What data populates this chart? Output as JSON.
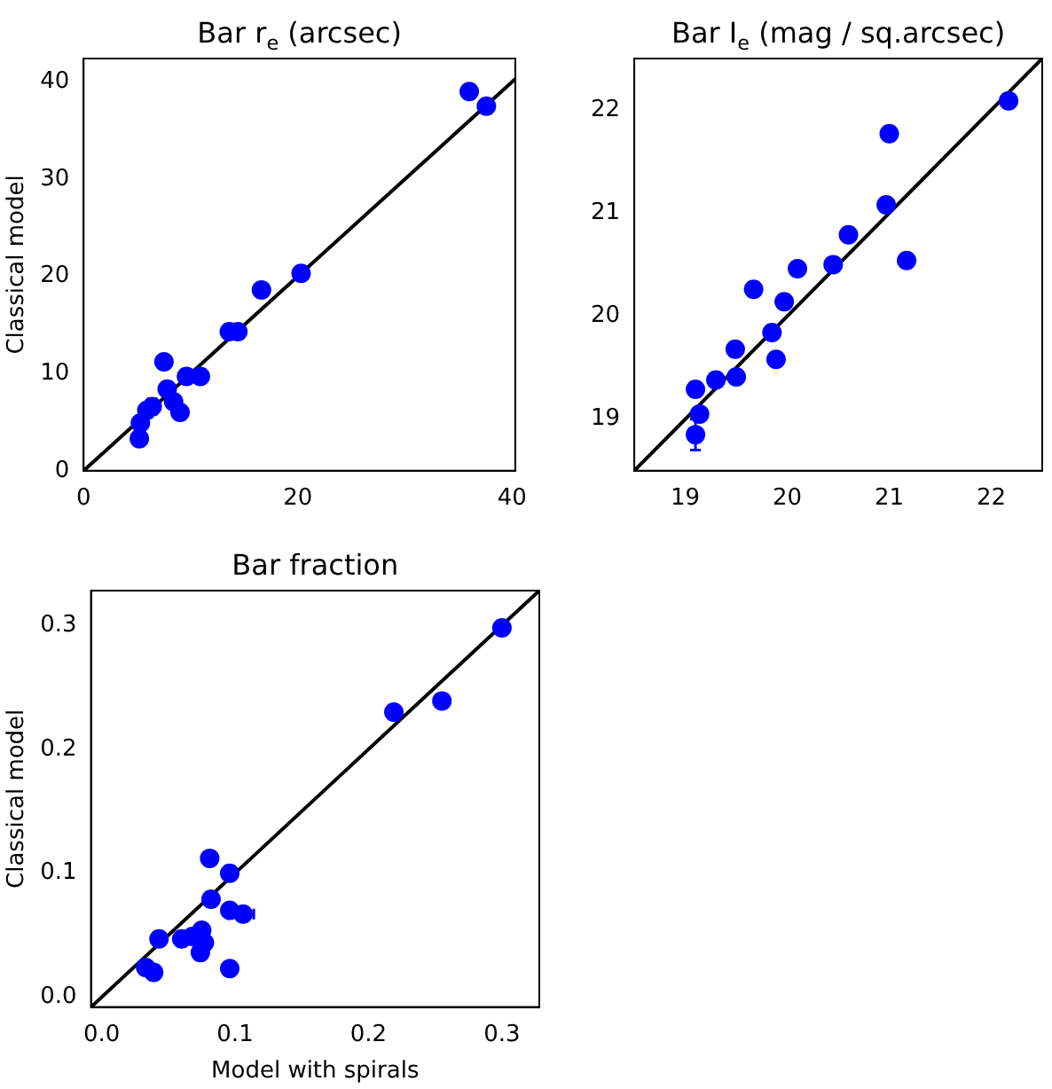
{
  "chart_data": [
    {
      "type": "scatter",
      "title": "Bar r$_{e}$ (arcsec)",
      "ylabel": "Classical model",
      "xlim": [
        0,
        40.3
      ],
      "ylim": [
        0,
        42.4
      ],
      "xticks": [
        0,
        20,
        40
      ],
      "yticks": [
        0,
        10,
        20,
        30,
        40
      ],
      "grid": false,
      "legend": false,
      "marker": "circle",
      "series": [
        {
          "type": "scatter",
          "color": "#0000ff",
          "x": [
            36.0,
            37.6,
            20.3,
            16.6,
            13.6,
            14.4,
            7.5,
            9.6,
            10.9,
            7.8,
            8.4,
            9.0,
            6.4,
            5.9,
            5.3,
            5.2
          ],
          "values": [
            39.0,
            37.5,
            20.3,
            18.6,
            14.3,
            14.3,
            11.2,
            9.7,
            9.7,
            8.4,
            7.1,
            6.0,
            6.6,
            6.2,
            4.9,
            3.3
          ],
          "errors": [
            null,
            null,
            null,
            null,
            null,
            null,
            null,
            null,
            null,
            null,
            null,
            null,
            0.8,
            null,
            null,
            null
          ]
        },
        {
          "type": "line",
          "marker": "none",
          "color": "#000000",
          "x": [
            0,
            40.3
          ],
          "values": [
            0,
            40.3
          ]
        }
      ]
    },
    {
      "type": "scatter",
      "title": "Bar I$_{e}$ (mag / sq.arcsec)",
      "xlim": [
        18.5,
        22.5
      ],
      "ylim": [
        18.5,
        22.5
      ],
      "xticks": [
        19,
        20,
        21,
        22
      ],
      "yticks": [
        19,
        20,
        21,
        22
      ],
      "grid": false,
      "legend": false,
      "marker": "circle",
      "series": [
        {
          "type": "scatter",
          "color": "#0000ff",
          "x": [
            22.17,
            21.0,
            20.97,
            21.17,
            20.6,
            20.45,
            20.1,
            19.67,
            19.97,
            19.85,
            19.89,
            19.49,
            19.5,
            19.3,
            19.1,
            19.14,
            19.1
          ],
          "values": [
            22.09,
            21.77,
            21.08,
            20.54,
            20.79,
            20.5,
            20.46,
            20.26,
            20.14,
            19.84,
            19.58,
            19.68,
            19.41,
            19.38,
            19.29,
            19.05,
            18.85
          ],
          "errors": [
            null,
            null,
            null,
            null,
            null,
            null,
            null,
            null,
            null,
            null,
            null,
            null,
            null,
            null,
            null,
            null,
            0.15
          ]
        },
        {
          "type": "line",
          "marker": "none",
          "color": "#000000",
          "x": [
            18.5,
            22.5
          ],
          "values": [
            18.5,
            22.5
          ]
        }
      ]
    },
    {
      "type": "scatter",
      "title": "Bar fraction",
      "xlabel": "Model with spirals",
      "ylabel": "Classical model",
      "xlim": [
        -0.008,
        0.328
      ],
      "ylim": [
        -0.008,
        0.328
      ],
      "xticks": [
        {
          "value": 0,
          "label": "0.0"
        },
        0.1,
        0.2,
        0.3
      ],
      "yticks": [
        {
          "value": 0,
          "label": "0.0"
        },
        0.1,
        0.2,
        0.3
      ],
      "grid": false,
      "legend": false,
      "marker": "circle",
      "series": [
        {
          "type": "scatter",
          "color": "#0000ff",
          "x": [
            0.3,
            0.219,
            0.255,
            0.081,
            0.096,
            0.082,
            0.096,
            0.106,
            0.043,
            0.06,
            0.068,
            0.075,
            0.077,
            0.074,
            0.096,
            0.033,
            0.039
          ],
          "values": [
            0.298,
            0.23,
            0.239,
            0.112,
            0.1,
            0.079,
            0.07,
            0.067,
            0.047,
            0.047,
            0.049,
            0.054,
            0.044,
            0.036,
            0.023,
            0.024,
            0.02
          ],
          "xerrors": [
            null,
            null,
            null,
            null,
            null,
            null,
            null,
            0.008,
            null,
            null,
            null,
            null,
            null,
            null,
            null,
            null,
            null
          ]
        },
        {
          "type": "line",
          "marker": "none",
          "color": "#000000",
          "x": [
            -0.008,
            0.328
          ],
          "values": [
            -0.008,
            0.328
          ]
        }
      ]
    }
  ]
}
